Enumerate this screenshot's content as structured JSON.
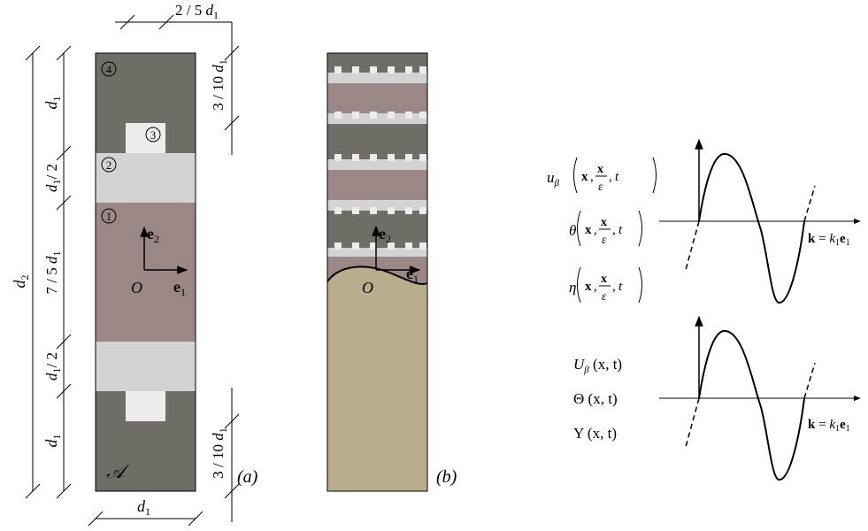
{
  "panel_a": {
    "label": "(a)",
    "domain_label": "𝒜",
    "region_numbers": [
      "4",
      "3",
      "2",
      "1"
    ],
    "dims_left": {
      "d2": "d",
      "d2_sub": "2",
      "d1": "d",
      "d1_sub": "1",
      "half": "/ 2",
      "seven_fifths": "7 / 5 ",
      "d": "d",
      "one": "1"
    },
    "dims_right": {
      "three_tenths": "3 / 10 ",
      "d": "d",
      "sub": "1"
    },
    "dim_top": {
      "frac": "2 / 5 ",
      "d": "d",
      "sub": "1"
    },
    "dim_bottom": {
      "d": "d",
      "sub": "1"
    },
    "axes": {
      "origin": "O",
      "e": "e",
      "sub1": "1",
      "sub2": "2"
    }
  },
  "panel_b": {
    "label": "(b)",
    "axes": {
      "origin": "O",
      "e": "e",
      "sub1": "1",
      "sub2": "2"
    }
  },
  "waves": {
    "upper_fields": [
      "u",
      "θ",
      "η"
    ],
    "upper_sub": "β",
    "upper_args": {
      "x": "x",
      "frac_num": "x",
      "frac_den": "ε",
      "t": "t"
    },
    "lower_fields": [
      "U",
      "Θ",
      "Υ"
    ],
    "lower_sub": "β",
    "lower_args": "x, t",
    "k_label": {
      "k": "k",
      "eq": " = ",
      "k1": "k",
      "k1_sub": "1",
      "e": "e",
      "e_sub": "1"
    }
  },
  "colors": {
    "dark_matrix": "#6e6e66",
    "light_layer": "#d3d3d3",
    "mauve_layer": "#9c8787",
    "white_inclusion": "#ececec",
    "substrate": "#b8ae8b",
    "line": "#000000"
  }
}
